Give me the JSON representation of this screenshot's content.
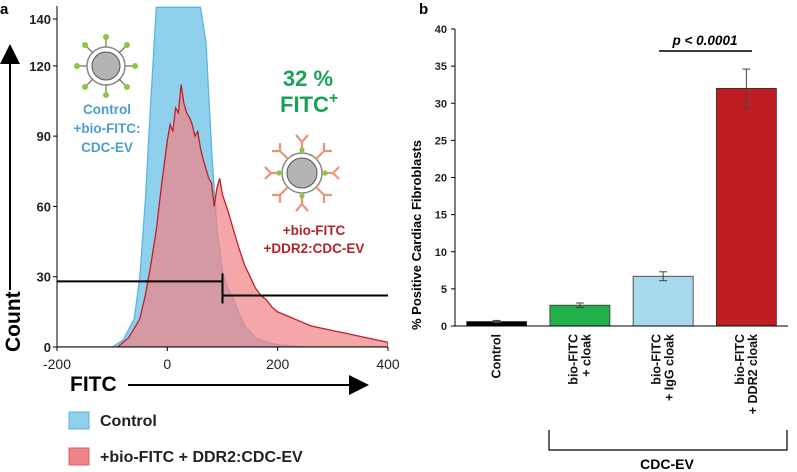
{
  "chart_data": [
    {
      "panel_label": "a",
      "type": "area",
      "xlabel": "FITC",
      "ylabel": "Count",
      "xlim": [
        -200,
        400
      ],
      "ylim": [
        0,
        140
      ],
      "x_ticks": [
        "-200",
        "0",
        "200",
        "400"
      ],
      "y_ticks": [
        "0",
        "30",
        "60",
        "90",
        "120",
        "140"
      ],
      "annotation_control": [
        "Control",
        "+bio-FITC:",
        "CDC-EV"
      ],
      "annotation_ddr2": [
        "+bio-FITC",
        "+DDR2:CDC-EV"
      ],
      "annotation_percent": "32 %",
      "annotation_fitc": "FITC",
      "annotation_fitc_sup": "+",
      "gate_control_x": [
        -200,
        100
      ],
      "gate_control_y": 28,
      "gate_positive_x": [
        100,
        400
      ],
      "gate_positive_y": 22,
      "series": [
        {
          "name": "Control",
          "color": "#8fd0ec",
          "edge": "#5ab6e0",
          "x": [
            -200,
            -100,
            -80,
            -60,
            -50,
            -40,
            -30,
            -20,
            -10,
            0,
            10,
            20,
            30,
            40,
            50,
            60,
            70,
            80,
            90,
            100,
            110,
            120,
            140,
            160,
            180,
            200,
            250,
            300,
            400
          ],
          "y": [
            0,
            0,
            3,
            12,
            30,
            62,
            105,
            145,
            145,
            145,
            145,
            145,
            145,
            145,
            145,
            145,
            130,
            85,
            50,
            32,
            25,
            20,
            9,
            4,
            2,
            1,
            0,
            0,
            0
          ]
        },
        {
          "name": "+bio-FITC + DDR2:CDC-EV",
          "color": "#f08488",
          "edge": "#c0202a",
          "x": [
            -200,
            -90,
            -70,
            -50,
            -40,
            -30,
            -20,
            -10,
            0,
            5,
            10,
            15,
            20,
            25,
            30,
            35,
            40,
            45,
            50,
            55,
            60,
            65,
            70,
            75,
            80,
            85,
            90,
            95,
            100,
            110,
            120,
            130,
            140,
            150,
            160,
            170,
            180,
            190,
            200,
            220,
            240,
            260,
            280,
            300,
            320,
            340,
            360,
            380,
            400
          ],
          "y": [
            0,
            0,
            4,
            12,
            22,
            35,
            50,
            70,
            88,
            95,
            92,
            102,
            100,
            112,
            104,
            100,
            98,
            95,
            90,
            92,
            85,
            80,
            76,
            72,
            70,
            60,
            68,
            72,
            65,
            58,
            50,
            42,
            35,
            30,
            25,
            22,
            20,
            17,
            15,
            13,
            11,
            9,
            8,
            7,
            6,
            5,
            4,
            3,
            2
          ]
        }
      ],
      "legend": [
        "Control",
        "+bio-FITC + DDR2:CDC-EV"
      ]
    },
    {
      "panel_label": "b",
      "type": "bar",
      "title": "",
      "xlabel": "",
      "ylabel": "% Positive Cardiac Fibroblasts",
      "ylim": [
        0,
        40
      ],
      "y_ticks": [
        "0",
        "5",
        "10",
        "15",
        "20",
        "25",
        "30",
        "35",
        "40"
      ],
      "categories": [
        [
          "Control"
        ],
        [
          "bio-FITC",
          "+ cloak"
        ],
        [
          "bio-FITC",
          "+ IgG cloak"
        ],
        [
          "bio-FITC",
          "+ DDR2 cloak"
        ]
      ],
      "values": [
        0.6,
        2.8,
        6.7,
        32.0
      ],
      "errors": [
        0.15,
        0.3,
        0.6,
        2.6
      ],
      "colors": [
        "#000000",
        "#22b04b",
        "#a8d8ec",
        "#c01c24"
      ],
      "significance": "p < 0.0001",
      "group_label": "CDC-EV"
    }
  ]
}
